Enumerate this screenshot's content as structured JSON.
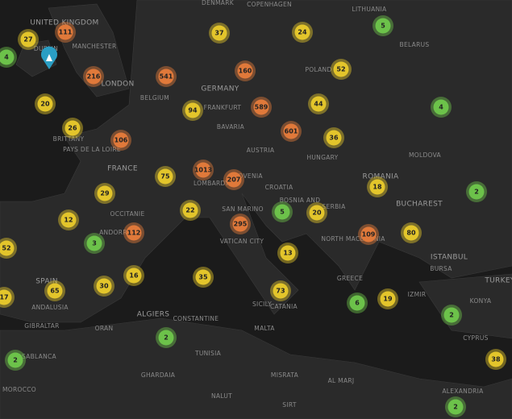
{
  "clusters": [
    27,
    111,
    4,
    216,
    20,
    26,
    106,
    37,
    24,
    5,
    541,
    160,
    52,
    94,
    589,
    44,
    4,
    601,
    36,
    1013,
    207,
    75,
    29,
    22,
    5,
    20,
    18,
    2,
    12,
    112,
    295,
    109,
    80,
    52,
    3,
    13,
    16,
    35,
    30,
    65,
    17,
    73,
    6,
    19,
    2,
    2,
    2,
    38,
    2
  ],
  "labels": [
    "UNITED KINGDOM",
    "DUBLIN",
    "MANCHESTER",
    "LONDON",
    "BELGIUM",
    "GERMANY",
    "FRANKFURT",
    "COPENHAGEN",
    "DENMARK",
    "LITHUANIA",
    "POLAND",
    "BELARUS",
    "FRANCE",
    "AUSTRIA",
    "HUNGARY",
    "SLOVENIA",
    "CROATIA",
    "ROMANIA",
    "BUCHAREST",
    "MOLDOVA",
    "SERBIA",
    "BOSNIA AND",
    "SAN MARINO",
    "VATICAN CITY",
    "ANDORRA",
    "SPAIN",
    "ANDALUSIA",
    "GIBRALTAR",
    "ALGIERS",
    "TUNISIA",
    "MALTA",
    "SICILY",
    "CATANIA",
    "ISTANBUL",
    "TURKEY",
    "BURSA",
    "IZMIR",
    "KONYA",
    "GREECE",
    "NORTH MACEDONIA",
    "CYPRUS",
    "ALEXANDRIA",
    "CASABLANCA",
    "MOROCCO",
    "GHARDAIA",
    "AL MARJ",
    "MISRATA",
    "SIRT",
    "NALUT",
    "CONSTANTINE",
    "ORAN",
    "BAVARIA",
    "LOMBARDY",
    "OCCITANIE",
    "PAYS DE LA LOIRE",
    "BRITTANY"
  ]
}
